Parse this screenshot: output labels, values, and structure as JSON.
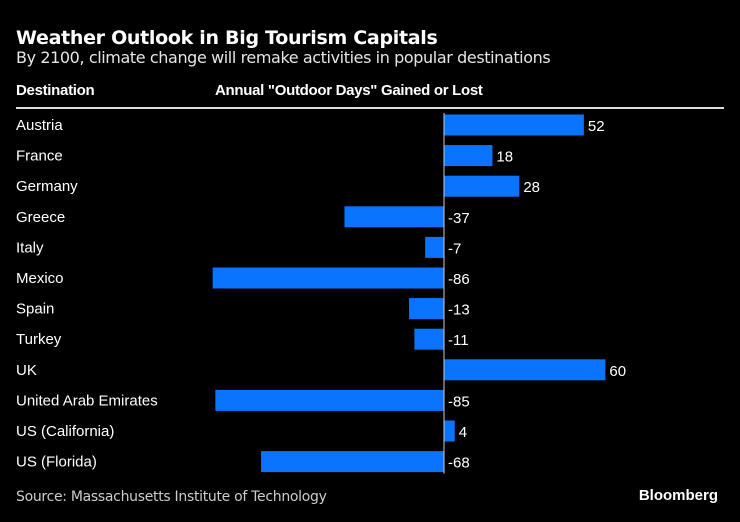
{
  "title": "Weather Outlook in Big Tourism Capitals",
  "subtitle": "By 2100, climate change will remake activities in popular destinations",
  "source": "Source: Massachusetts Institute of Technology",
  "logo": "Bloomberg",
  "chart_data": {
    "type": "bar",
    "orientation": "horizontal",
    "category_header": "Destination",
    "value_header": "Annual \"Outdoor Days\" Gained or Lost",
    "categories": [
      "Austria",
      "France",
      "Germany",
      "Greece",
      "Italy",
      "Mexico",
      "Spain",
      "Turkey",
      "UK",
      "United Arab Emirates",
      "US (California)",
      "US (Florida)"
    ],
    "values": [
      52,
      18,
      28,
      -37,
      -7,
      -86,
      -13,
      -11,
      60,
      -85,
      4,
      -68
    ],
    "bar_color": "#0a74ff",
    "data_labels": true,
    "grid": false
  }
}
